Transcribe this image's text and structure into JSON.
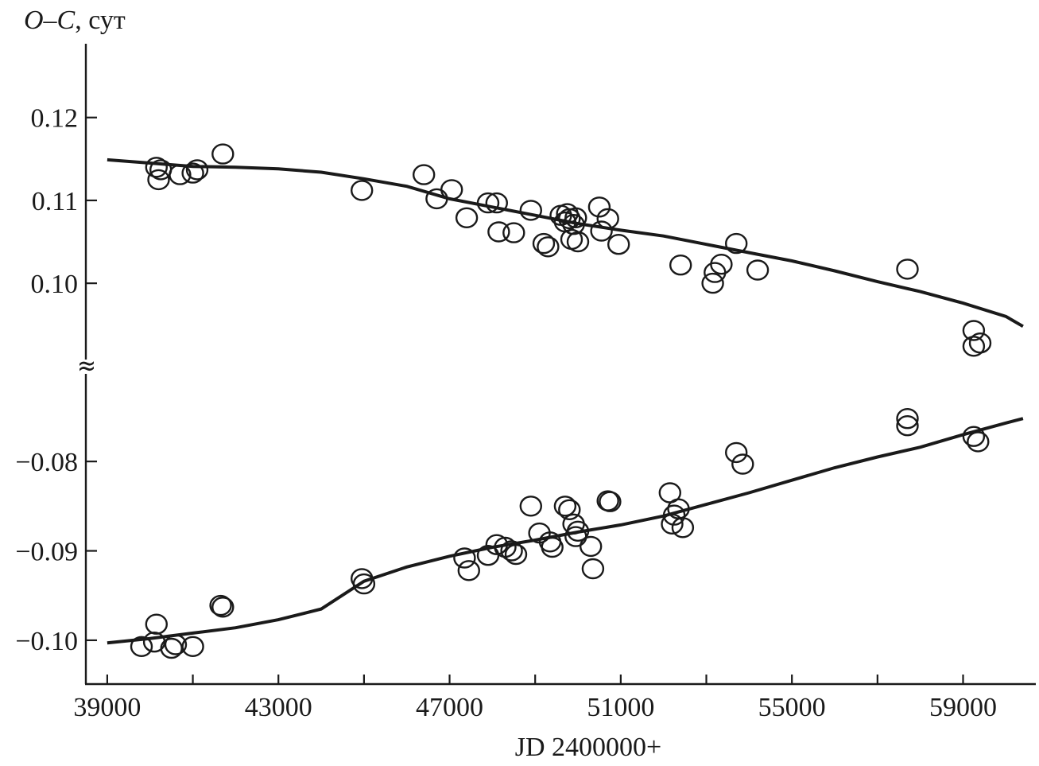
{
  "chart_data": {
    "type": "scatter",
    "ylabel": {
      "italic": "O–C",
      "rest": ", сут"
    },
    "xlabel": "JD 2400000+",
    "xlim": [
      38500,
      60700
    ],
    "x_ticks": [
      39000,
      41000,
      43000,
      45000,
      47000,
      49000,
      51000,
      53000,
      55000,
      57000,
      59000
    ],
    "x_tick_labels": [
      {
        "value": 39000,
        "label": "39000"
      },
      {
        "value": 43000,
        "label": "43000"
      },
      {
        "value": 47000,
        "label": "47000"
      },
      {
        "value": 51000,
        "label": "51000"
      },
      {
        "value": 55000,
        "label": "55000"
      },
      {
        "value": 59000,
        "label": "59000"
      }
    ],
    "axis_break": true,
    "panels": [
      {
        "id": "upper",
        "ylim": [
          0.0908,
          0.1289
        ],
        "y_ticks": [
          0.1,
          0.11,
          0.12
        ],
        "y_tick_labels": [
          "0.10",
          "0.11",
          "0.12"
        ],
        "fit": {
          "x": [
            39000,
            40000,
            41000,
            42000,
            43000,
            44000,
            45000,
            46000,
            47000,
            48000,
            49000,
            50000,
            51000,
            52000,
            53000,
            54000,
            55000,
            56000,
            57000,
            58000,
            59000,
            60000,
            60400
          ],
          "y": [
            0.1149,
            0.1145,
            0.1141,
            0.114,
            0.1138,
            0.1134,
            0.1126,
            0.1117,
            0.1102,
            0.1092,
            0.1082,
            0.1072,
            0.1064,
            0.1057,
            0.1047,
            0.1037,
            0.1027,
            0.1015,
            0.1002,
            0.099,
            0.0976,
            0.096,
            0.0948
          ]
        },
        "points": [
          [
            40150,
            0.114
          ],
          [
            40200,
            0.1125
          ],
          [
            40250,
            0.1137
          ],
          [
            40700,
            0.1131
          ],
          [
            41000,
            0.1133
          ],
          [
            41100,
            0.1137
          ],
          [
            41700,
            0.1156
          ],
          [
            44950,
            0.1112
          ],
          [
            46400,
            0.1131
          ],
          [
            46700,
            0.1102
          ],
          [
            47050,
            0.1113
          ],
          [
            47400,
            0.1079
          ],
          [
            47900,
            0.1097
          ],
          [
            48100,
            0.1097
          ],
          [
            48150,
            0.1062
          ],
          [
            48500,
            0.1061
          ],
          [
            48900,
            0.1088
          ],
          [
            49200,
            0.1048
          ],
          [
            49300,
            0.1044
          ],
          [
            49600,
            0.1082
          ],
          [
            49700,
            0.1074
          ],
          [
            49750,
            0.1084
          ],
          [
            49800,
            0.1078
          ],
          [
            49900,
            0.1071
          ],
          [
            49950,
            0.1079
          ],
          [
            49850,
            0.1053
          ],
          [
            50000,
            0.105
          ],
          [
            50500,
            0.1092
          ],
          [
            50550,
            0.1063
          ],
          [
            50700,
            0.1078
          ],
          [
            50950,
            0.1047
          ],
          [
            52400,
            0.1022
          ],
          [
            53150,
            0.1
          ],
          [
            53200,
            0.1013
          ],
          [
            53350,
            0.1023
          ],
          [
            53700,
            0.1048
          ],
          [
            54200,
            0.1016
          ],
          [
            57700,
            0.1017
          ],
          [
            59250,
            0.0943
          ],
          [
            59250,
            0.0924
          ],
          [
            59400,
            0.0928
          ]
        ]
      },
      {
        "id": "lower",
        "ylim": [
          -0.1049,
          -0.0702
        ],
        "y_ticks": [
          -0.1,
          -0.09,
          -0.08
        ],
        "y_tick_labels": [
          "−0.10",
          "−0.09",
          "−0.08"
        ],
        "fit": {
          "x": [
            39000,
            40000,
            41000,
            42000,
            43000,
            44000,
            45000,
            46000,
            47000,
            48000,
            49000,
            50000,
            51000,
            52000,
            53000,
            54000,
            55000,
            56000,
            57000,
            58000,
            59000,
            60000,
            60400
          ],
          "y": [
            -0.1003,
            -0.0998,
            -0.0992,
            -0.0986,
            -0.0977,
            -0.0965,
            -0.0934,
            -0.0918,
            -0.0906,
            -0.0896,
            -0.0888,
            -0.0879,
            -0.0871,
            -0.0861,
            -0.0848,
            -0.0835,
            -0.0821,
            -0.0807,
            -0.0795,
            -0.0784,
            -0.077,
            -0.0757,
            -0.0752
          ]
        },
        "points": [
          [
            39800,
            -0.1007
          ],
          [
            40100,
            -0.1002
          ],
          [
            40150,
            -0.0982
          ],
          [
            40500,
            -0.1009
          ],
          [
            40600,
            -0.1005
          ],
          [
            41000,
            -0.1007
          ],
          [
            41650,
            -0.0961
          ],
          [
            41700,
            -0.0963
          ],
          [
            44950,
            -0.0931
          ],
          [
            45000,
            -0.0937
          ],
          [
            47350,
            -0.0908
          ],
          [
            47450,
            -0.0922
          ],
          [
            47900,
            -0.0905
          ],
          [
            48100,
            -0.0893
          ],
          [
            48300,
            -0.0896
          ],
          [
            48450,
            -0.09
          ],
          [
            48550,
            -0.0904
          ],
          [
            48900,
            -0.085
          ],
          [
            49100,
            -0.088
          ],
          [
            49350,
            -0.089
          ],
          [
            49400,
            -0.0896
          ],
          [
            49700,
            -0.085
          ],
          [
            49800,
            -0.0854
          ],
          [
            49900,
            -0.087
          ],
          [
            49950,
            -0.0884
          ],
          [
            50000,
            -0.0878
          ],
          [
            50300,
            -0.0895
          ],
          [
            50350,
            -0.092
          ],
          [
            50700,
            -0.0844
          ],
          [
            50750,
            -0.0845
          ],
          [
            52150,
            -0.0835
          ],
          [
            52200,
            -0.087
          ],
          [
            52250,
            -0.086
          ],
          [
            52350,
            -0.0853
          ],
          [
            52450,
            -0.0874
          ],
          [
            53700,
            -0.079
          ],
          [
            53850,
            -0.0803
          ],
          [
            57700,
            -0.0752
          ],
          [
            57700,
            -0.076
          ],
          [
            59250,
            -0.0772
          ],
          [
            59350,
            -0.0778
          ]
        ]
      }
    ]
  }
}
